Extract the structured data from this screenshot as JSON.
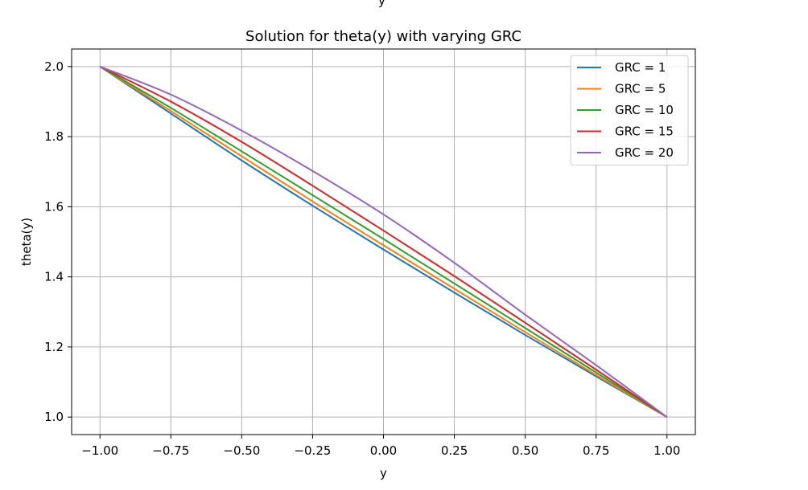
{
  "top_cut_label": "y",
  "chart_data": {
    "type": "line",
    "title": "Solution for theta(y) with varying GRC",
    "xlabel": "y",
    "ylabel": "theta(y)",
    "xlim": [
      -1.1,
      1.1
    ],
    "ylim": [
      0.95,
      2.05
    ],
    "xticks": [
      -1.0,
      -0.75,
      -0.5,
      -0.25,
      0.0,
      0.25,
      0.5,
      0.75,
      1.0
    ],
    "xtick_labels": [
      "−1.00",
      "−0.75",
      "−0.50",
      "−0.25",
      "0.00",
      "0.25",
      "0.50",
      "0.75",
      "1.00"
    ],
    "yticks": [
      1.0,
      1.2,
      1.4,
      1.6,
      1.8,
      2.0
    ],
    "ytick_labels": [
      "1.0",
      "1.2",
      "1.4",
      "1.6",
      "1.8",
      "2.0"
    ],
    "grid": true,
    "legend_position": "top-right",
    "x": [
      -1.0,
      -0.75,
      -0.5,
      -0.25,
      0.0,
      0.25,
      0.5,
      0.75,
      1.0
    ],
    "series": [
      {
        "name": "GRC = 1",
        "color": "#1f77b4",
        "values": [
          2.0,
          1.866,
          1.732,
          1.603,
          1.478,
          1.355,
          1.234,
          1.116,
          1.0
        ]
      },
      {
        "name": "GRC = 5",
        "color": "#ff7f0e",
        "values": [
          2.0,
          1.873,
          1.744,
          1.615,
          1.49,
          1.366,
          1.242,
          1.12,
          1.0
        ]
      },
      {
        "name": "GRC = 10",
        "color": "#2ca02c",
        "values": [
          2.0,
          1.882,
          1.758,
          1.633,
          1.508,
          1.381,
          1.254,
          1.127,
          1.0
        ]
      },
      {
        "name": "GRC = 15",
        "color": "#d62728",
        "values": [
          2.0,
          1.9,
          1.785,
          1.66,
          1.532,
          1.402,
          1.269,
          1.135,
          1.0
        ]
      },
      {
        "name": "GRC = 20",
        "color": "#9467bd",
        "values": [
          2.0,
          1.92,
          1.817,
          1.702,
          1.578,
          1.44,
          1.292,
          1.148,
          1.0
        ]
      }
    ]
  }
}
